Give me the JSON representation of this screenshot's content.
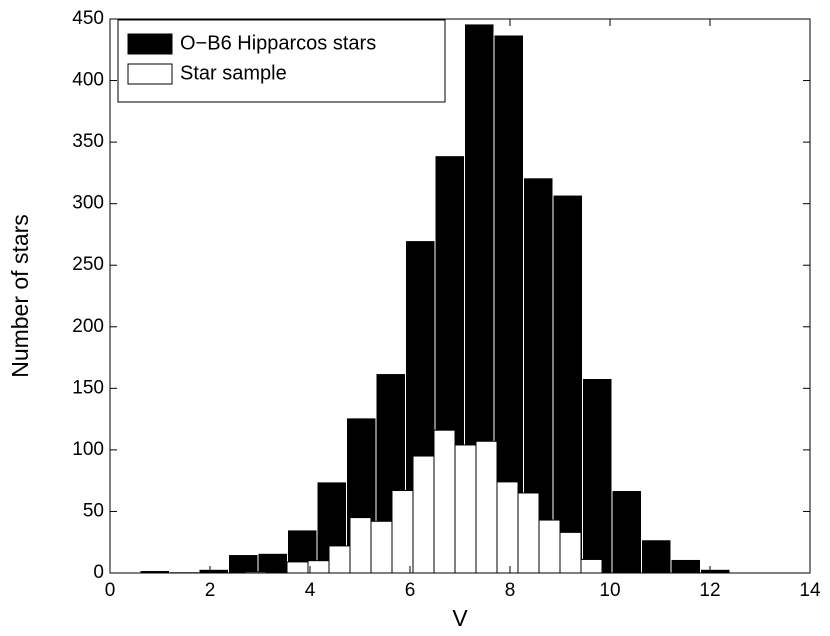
{
  "chart_data": {
    "type": "histogram",
    "xlabel": "V",
    "ylabel": "Number of stars",
    "xlim": [
      0,
      14
    ],
    "xticks": [
      0,
      2,
      4,
      6,
      8,
      10,
      12,
      14
    ],
    "ylim": [
      0,
      450
    ],
    "yticks": [
      0,
      50,
      100,
      150,
      200,
      250,
      300,
      350,
      400,
      450
    ],
    "legend": "upper left",
    "grid": false,
    "series": [
      {
        "name": "O−B6 Hipparcos stars",
        "color": "#000000",
        "edgecolor": "#ffffff",
        "bins": [
          0.6,
          1.19,
          1.78,
          2.37,
          2.96,
          3.55,
          4.14,
          4.73,
          5.32,
          5.91,
          6.5,
          7.09,
          7.68,
          8.27,
          8.86,
          9.45,
          10.04,
          10.63,
          11.22,
          11.81,
          12.4
        ],
        "values": [
          2,
          1,
          3,
          15,
          16,
          35,
          74,
          126,
          162,
          270,
          339,
          446,
          437,
          321,
          307,
          158,
          67,
          27,
          11,
          3
        ]
      },
      {
        "name": "Star sample",
        "color": "#ffffff",
        "edgecolor": "#000000",
        "bins": [
          2.7,
          3.12,
          3.54,
          3.96,
          4.38,
          4.8,
          5.22,
          5.64,
          6.06,
          6.48,
          6.9,
          7.32,
          7.74,
          8.16,
          8.58,
          9.0,
          9.42,
          9.84
        ],
        "values": [
          1,
          0,
          9,
          10,
          22,
          45,
          42,
          67,
          95,
          116,
          104,
          107,
          74,
          65,
          43,
          33,
          11
        ]
      }
    ]
  }
}
